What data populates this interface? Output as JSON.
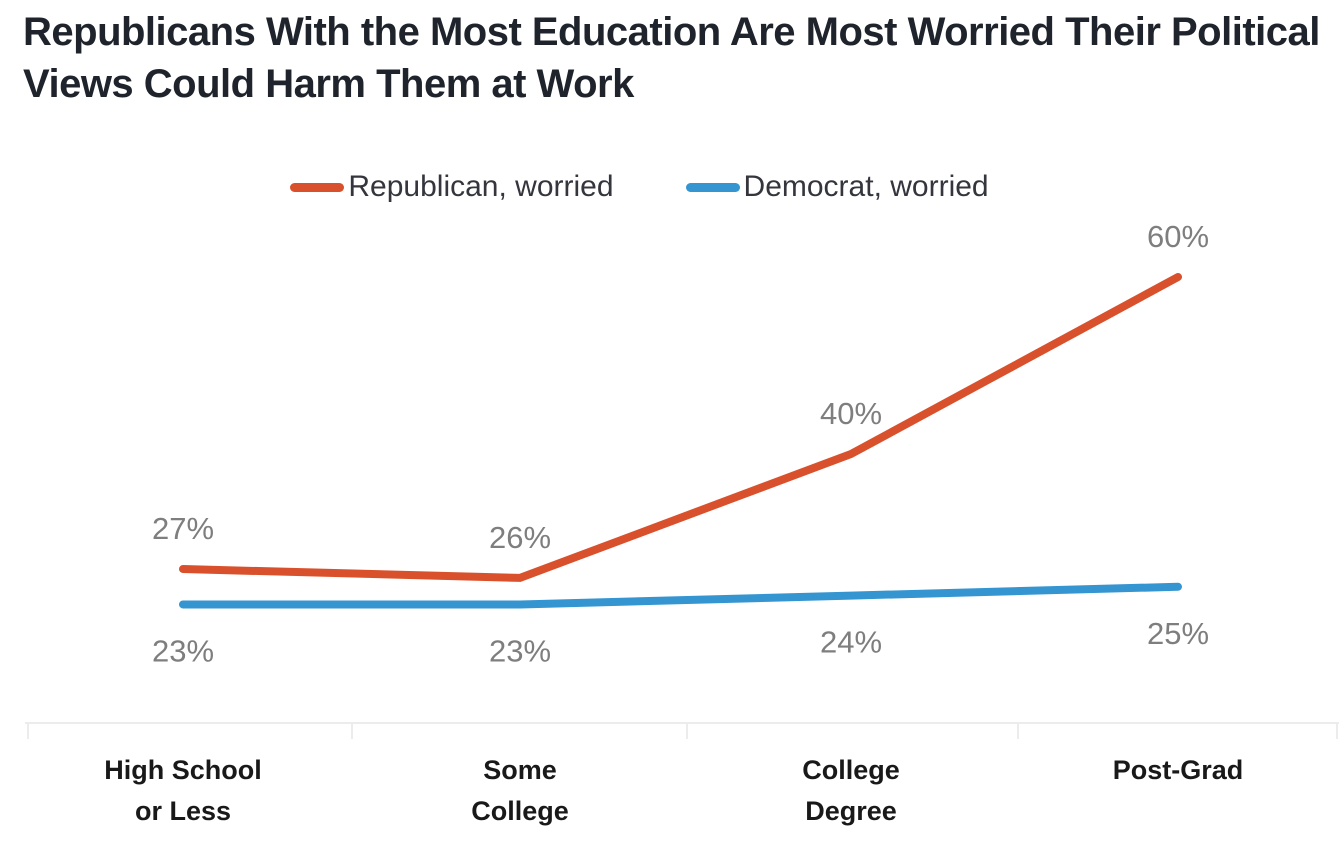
{
  "chart_data": {
    "type": "line",
    "title": "Republicans With the Most Education Are Most Worried Their Political Views Could Harm Them at Work",
    "categories": [
      "High School\nor Less",
      "Some\nCollege",
      "College\nDegree",
      "Post-Grad"
    ],
    "series": [
      {
        "name": "Republican, worried",
        "color": "#d9512c",
        "values": [
          27,
          26,
          40,
          60
        ],
        "data_labels": [
          "27%",
          "26%",
          "40%",
          "60%"
        ]
      },
      {
        "name": "Democrat, worried",
        "color": "#3595d0",
        "values": [
          23,
          23,
          24,
          25
        ],
        "data_labels": [
          "23%",
          "23%",
          "24%",
          "25%"
        ]
      }
    ],
    "unit": "%",
    "xlabel": "",
    "ylabel": "",
    "ylim": [
      0,
      70
    ],
    "grid": false,
    "legend_position": "top-center",
    "colors": {
      "title_text": "#1f232b",
      "legend_text": "#34353d",
      "data_label": "#7e7e7e",
      "category_label": "#191919",
      "axis_line": "#ececec"
    }
  }
}
